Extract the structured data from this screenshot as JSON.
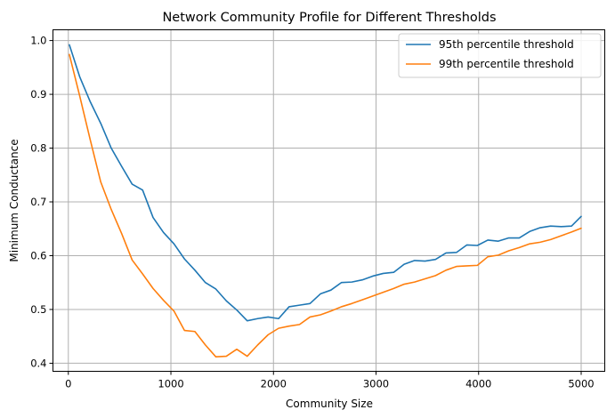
{
  "chart_data": {
    "type": "line",
    "title": "Network Community Profile for Different Thresholds",
    "xlabel": "Community Size",
    "ylabel": "Minimum Conductance",
    "xlim": [
      -150,
      5230
    ],
    "ylim": [
      0.385,
      1.02
    ],
    "xticks": [
      0,
      1000,
      2000,
      3000,
      4000,
      5000
    ],
    "yticks": [
      0.4,
      0.5,
      0.6,
      0.7,
      0.8,
      0.9,
      1.0
    ],
    "xtick_labels": [
      "0",
      "1000",
      "2000",
      "3000",
      "4000",
      "5000"
    ],
    "ytick_labels": [
      "0.4",
      "0.5",
      "0.6",
      "0.7",
      "0.8",
      "0.9",
      "1.0"
    ],
    "grid": true,
    "legend_position": "top-right",
    "x": [
      10,
      112,
      214,
      316,
      418,
      520,
      622,
      724,
      826,
      928,
      1030,
      1132,
      1234,
      1336,
      1438,
      1540,
      1642,
      1744,
      1846,
      1948,
      2050,
      2152,
      2254,
      2356,
      2458,
      2560,
      2662,
      2764,
      2866,
      2968,
      3070,
      3172,
      3274,
      3376,
      3478,
      3580,
      3682,
      3784,
      3886,
      3988,
      4090,
      4192,
      4294,
      4396,
      4498,
      4600,
      4702,
      4804,
      4906,
      5000
    ],
    "series": [
      {
        "name": "95th percentile threshold",
        "color": "#1f77b4",
        "values": [
          0.992,
          0.932,
          0.886,
          0.846,
          0.8,
          0.766,
          0.733,
          0.722,
          0.671,
          0.643,
          0.622,
          0.594,
          0.573,
          0.55,
          0.538,
          0.516,
          0.499,
          0.479,
          0.483,
          0.486,
          0.483,
          0.505,
          0.508,
          0.511,
          0.529,
          0.536,
          0.55,
          0.551,
          0.555,
          0.562,
          0.567,
          0.569,
          0.584,
          0.591,
          0.59,
          0.593,
          0.605,
          0.606,
          0.62,
          0.619,
          0.629,
          0.627,
          0.633,
          0.633,
          0.645,
          0.652,
          0.655,
          0.654,
          0.655,
          0.673
        ]
      },
      {
        "name": "99th percentile threshold",
        "color": "#ff7f0e",
        "values": [
          0.974,
          0.896,
          0.815,
          0.737,
          0.686,
          0.641,
          0.592,
          0.566,
          0.539,
          0.517,
          0.497,
          0.461,
          0.459,
          0.434,
          0.412,
          0.413,
          0.426,
          0.413,
          0.434,
          0.453,
          0.465,
          0.469,
          0.472,
          0.486,
          0.49,
          0.497,
          0.505,
          0.511,
          0.518,
          0.525,
          0.532,
          0.539,
          0.547,
          0.551,
          0.557,
          0.563,
          0.573,
          0.58,
          0.581,
          0.582,
          0.598,
          0.601,
          0.609,
          0.615,
          0.622,
          0.625,
          0.63,
          0.637,
          0.644,
          0.651
        ]
      }
    ]
  }
}
